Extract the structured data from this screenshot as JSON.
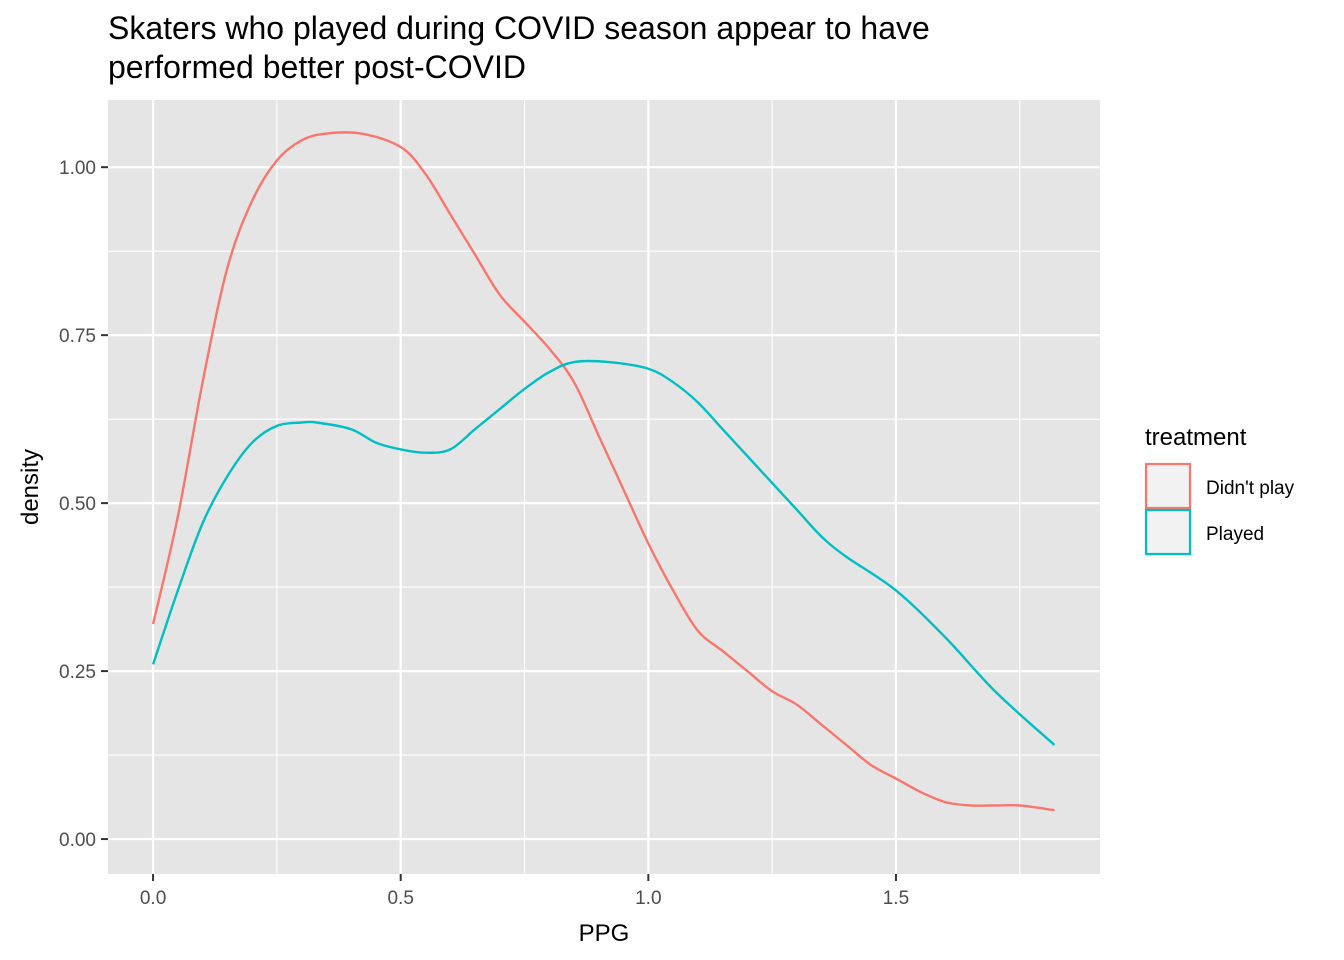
{
  "chart_data": {
    "type": "line",
    "title_lines": [
      "Skaters who played during COVID season appear to have",
      "performed better post-COVID"
    ],
    "xlabel": "PPG",
    "ylabel": "density",
    "xlim": [
      -0.091,
      1.912
    ],
    "ylim": [
      -0.052,
      1.1
    ],
    "x_ticks": [
      0.0,
      0.5,
      1.0,
      1.5
    ],
    "x_tick_labels": [
      "0.0",
      "0.5",
      "1.0",
      "1.5"
    ],
    "x_minor": [
      0.25,
      0.75,
      1.25,
      1.75
    ],
    "y_ticks": [
      0.0,
      0.25,
      0.5,
      0.75,
      1.0
    ],
    "y_tick_labels": [
      "0.00",
      "0.25",
      "0.50",
      "0.75",
      "1.00"
    ],
    "y_minor": [
      0.125,
      0.375,
      0.625,
      0.875
    ],
    "grid": true,
    "legend": {
      "title": "treatment",
      "position": "right"
    },
    "series": [
      {
        "name": "Didn't play",
        "color": "#F8766D",
        "x": [
          0.0,
          0.05,
          0.1,
          0.15,
          0.2,
          0.25,
          0.3,
          0.35,
          0.42,
          0.5,
          0.55,
          0.6,
          0.65,
          0.7,
          0.75,
          0.8,
          0.85,
          0.9,
          0.95,
          1.0,
          1.05,
          1.1,
          1.15,
          1.2,
          1.25,
          1.3,
          1.35,
          1.4,
          1.45,
          1.5,
          1.55,
          1.6,
          1.65,
          1.7,
          1.75,
          1.82
        ],
        "y": [
          0.32,
          0.48,
          0.68,
          0.85,
          0.95,
          1.01,
          1.04,
          1.05,
          1.05,
          1.03,
          0.99,
          0.93,
          0.87,
          0.81,
          0.77,
          0.73,
          0.68,
          0.6,
          0.52,
          0.44,
          0.37,
          0.31,
          0.28,
          0.25,
          0.22,
          0.2,
          0.17,
          0.14,
          0.11,
          0.09,
          0.07,
          0.055,
          0.05,
          0.05,
          0.05,
          0.043
        ]
      },
      {
        "name": "Played",
        "color": "#00BFC4",
        "x": [
          0.0,
          0.05,
          0.1,
          0.15,
          0.2,
          0.25,
          0.3,
          0.33,
          0.4,
          0.45,
          0.5,
          0.55,
          0.6,
          0.65,
          0.7,
          0.75,
          0.8,
          0.85,
          0.92,
          1.0,
          1.05,
          1.1,
          1.15,
          1.2,
          1.25,
          1.3,
          1.35,
          1.4,
          1.5,
          1.6,
          1.7,
          1.82
        ],
        "y": [
          0.26,
          0.37,
          0.47,
          0.54,
          0.59,
          0.615,
          0.62,
          0.62,
          0.61,
          0.59,
          0.58,
          0.575,
          0.58,
          0.61,
          0.64,
          0.67,
          0.695,
          0.71,
          0.71,
          0.7,
          0.68,
          0.65,
          0.61,
          0.57,
          0.53,
          0.49,
          0.45,
          0.42,
          0.37,
          0.3,
          0.22,
          0.14
        ]
      }
    ]
  }
}
